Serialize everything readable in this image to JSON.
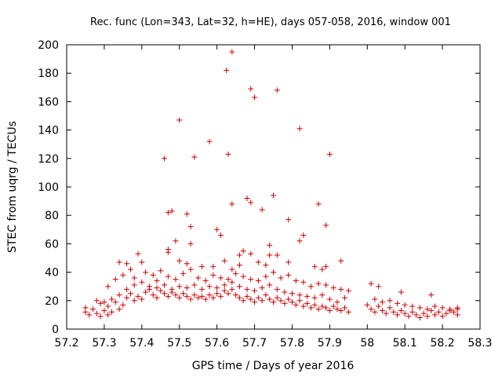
{
  "chart_data": {
    "type": "scatter",
    "title": "Rec. func (Lon=343, Lat=32, h=HE), days 057-058, 2016, window 001",
    "xlabel": "GPS time / Days of year 2016",
    "ylabel": "STEC from uqrg / TECUs",
    "xlim": [
      57.2,
      58.3
    ],
    "ylim": [
      0,
      200
    ],
    "xticks": [
      "57.2",
      "57.3",
      "57.4",
      "57.5",
      "57.6",
      "57.7",
      "57.8",
      "57.9",
      "58",
      "58.1",
      "58.2",
      "58.3"
    ],
    "yticks": [
      "0",
      "20",
      "40",
      "60",
      "80",
      "100",
      "120",
      "140",
      "160",
      "180",
      "200"
    ],
    "grid": false,
    "legend": "none",
    "marker": "plus",
    "color": "#cc0000",
    "series": [
      {
        "values": [
          [
            57.46,
            120
          ],
          [
            57.5,
            147
          ],
          [
            57.54,
            121
          ],
          [
            57.58,
            132
          ],
          [
            57.625,
            182
          ],
          [
            57.64,
            195
          ],
          [
            57.63,
            123
          ],
          [
            57.69,
            169
          ],
          [
            57.7,
            163
          ],
          [
            57.76,
            168
          ],
          [
            57.82,
            141
          ],
          [
            57.9,
            123
          ],
          [
            57.75,
            94
          ],
          [
            57.68,
            92
          ],
          [
            57.69,
            89
          ],
          [
            57.64,
            88
          ],
          [
            57.87,
            88
          ],
          [
            57.48,
            83
          ],
          [
            57.47,
            82
          ],
          [
            57.52,
            81
          ],
          [
            57.72,
            84
          ],
          [
            57.79,
            77
          ],
          [
            57.53,
            72
          ],
          [
            57.6,
            70
          ],
          [
            57.61,
            66
          ],
          [
            57.83,
            66
          ],
          [
            57.82,
            62
          ],
          [
            57.89,
            73
          ],
          [
            57.49,
            62
          ],
          [
            57.53,
            60
          ],
          [
            57.74,
            59
          ],
          [
            57.47,
            56
          ],
          [
            57.47,
            54
          ],
          [
            57.67,
            55
          ],
          [
            57.66,
            52
          ],
          [
            57.69,
            53
          ],
          [
            57.74,
            52
          ],
          [
            57.76,
            52
          ],
          [
            57.93,
            48
          ],
          [
            57.39,
            53
          ],
          [
            57.4,
            47
          ],
          [
            57.5,
            48
          ],
          [
            57.52,
            46
          ],
          [
            57.56,
            44
          ],
          [
            57.59,
            44
          ],
          [
            57.62,
            48
          ],
          [
            57.64,
            42
          ],
          [
            57.66,
            45
          ],
          [
            57.71,
            47
          ],
          [
            57.73,
            45
          ],
          [
            57.79,
            47
          ],
          [
            57.86,
            44
          ],
          [
            57.88,
            42
          ],
          [
            57.89,
            44
          ],
          [
            57.34,
            47
          ],
          [
            57.36,
            46
          ],
          [
            57.31,
            30
          ],
          [
            57.33,
            35
          ],
          [
            57.35,
            38
          ],
          [
            57.37,
            42
          ],
          [
            57.38,
            36
          ],
          [
            57.41,
            40
          ],
          [
            57.43,
            38
          ],
          [
            57.45,
            41
          ],
          [
            57.44,
            34
          ],
          [
            57.47,
            37
          ],
          [
            57.49,
            35
          ],
          [
            57.51,
            39
          ],
          [
            57.53,
            42
          ],
          [
            57.55,
            36
          ],
          [
            57.57,
            34
          ],
          [
            57.59,
            38
          ],
          [
            57.61,
            36
          ],
          [
            57.63,
            35
          ],
          [
            57.65,
            39
          ],
          [
            57.67,
            37
          ],
          [
            57.69,
            35
          ],
          [
            57.71,
            34
          ],
          [
            57.73,
            37
          ],
          [
            57.75,
            40
          ],
          [
            57.77,
            36
          ],
          [
            57.79,
            38
          ],
          [
            57.81,
            34
          ],
          [
            57.83,
            33
          ],
          [
            57.85,
            30
          ],
          [
            57.87,
            32
          ],
          [
            57.89,
            31
          ],
          [
            57.91,
            29
          ],
          [
            57.93,
            28
          ],
          [
            57.95,
            27
          ],
          [
            58.01,
            32
          ],
          [
            58.03,
            30
          ],
          [
            58.09,
            26
          ],
          [
            58.17,
            24
          ],
          [
            57.25,
            15
          ],
          [
            57.25,
            12
          ],
          [
            57.26,
            10
          ],
          [
            57.27,
            14
          ],
          [
            57.28,
            11
          ],
          [
            57.29,
            18
          ],
          [
            57.29,
            9
          ],
          [
            57.3,
            13
          ],
          [
            57.31,
            16
          ],
          [
            57.31,
            10
          ],
          [
            57.32,
            12
          ],
          [
            57.33,
            19
          ],
          [
            57.34,
            14
          ],
          [
            57.35,
            17
          ],
          [
            57.36,
            22
          ],
          [
            57.37,
            25
          ],
          [
            57.38,
            20
          ],
          [
            57.39,
            23
          ],
          [
            57.4,
            21
          ],
          [
            57.41,
            26
          ],
          [
            57.42,
            28
          ],
          [
            57.43,
            24
          ],
          [
            57.44,
            22
          ],
          [
            57.45,
            27
          ],
          [
            57.46,
            25
          ],
          [
            57.47,
            23
          ],
          [
            57.48,
            26
          ],
          [
            57.49,
            24
          ],
          [
            57.5,
            22
          ],
          [
            57.51,
            25
          ],
          [
            57.52,
            23
          ],
          [
            57.53,
            21
          ],
          [
            57.54,
            24
          ],
          [
            57.55,
            22
          ],
          [
            57.56,
            23
          ],
          [
            57.57,
            21
          ],
          [
            57.58,
            24
          ],
          [
            57.59,
            22
          ],
          [
            57.6,
            25
          ],
          [
            57.61,
            23
          ],
          [
            57.62,
            27
          ],
          [
            57.63,
            25
          ],
          [
            57.64,
            28
          ],
          [
            57.65,
            24
          ],
          [
            57.66,
            22
          ],
          [
            57.67,
            20
          ],
          [
            57.68,
            23
          ],
          [
            57.69,
            21
          ],
          [
            57.7,
            19
          ],
          [
            57.71,
            22
          ],
          [
            57.72,
            20
          ],
          [
            57.73,
            24
          ],
          [
            57.74,
            21
          ],
          [
            57.75,
            19
          ],
          [
            57.76,
            22
          ],
          [
            57.77,
            20
          ],
          [
            57.78,
            18
          ],
          [
            57.79,
            21
          ],
          [
            57.8,
            19
          ],
          [
            57.81,
            17
          ],
          [
            57.82,
            20
          ],
          [
            57.83,
            16
          ],
          [
            57.84,
            18
          ],
          [
            57.85,
            15
          ],
          [
            57.86,
            17
          ],
          [
            57.87,
            14
          ],
          [
            57.88,
            16
          ],
          [
            57.89,
            15
          ],
          [
            57.9,
            13
          ],
          [
            57.91,
            16
          ],
          [
            57.92,
            14
          ],
          [
            57.93,
            13
          ],
          [
            57.94,
            15
          ],
          [
            57.95,
            12
          ],
          [
            58.0,
            17
          ],
          [
            58.01,
            14
          ],
          [
            58.02,
            12
          ],
          [
            58.03,
            16
          ],
          [
            58.04,
            13
          ],
          [
            58.05,
            11
          ],
          [
            58.06,
            15
          ],
          [
            58.07,
            12
          ],
          [
            58.08,
            10
          ],
          [
            58.09,
            13
          ],
          [
            58.1,
            11
          ],
          [
            58.11,
            9
          ],
          [
            58.12,
            12
          ],
          [
            58.13,
            10
          ],
          [
            58.14,
            8
          ],
          [
            58.15,
            11
          ],
          [
            58.16,
            9
          ],
          [
            58.17,
            13
          ],
          [
            58.18,
            10
          ],
          [
            58.19,
            12
          ],
          [
            58.2,
            9
          ],
          [
            58.21,
            11
          ],
          [
            58.22,
            14
          ],
          [
            58.23,
            12
          ],
          [
            58.24,
            15
          ],
          [
            58.24,
            10
          ],
          [
            57.28,
            20
          ],
          [
            57.3,
            19
          ],
          [
            57.32,
            21
          ],
          [
            57.34,
            24
          ],
          [
            57.36,
            28
          ],
          [
            57.38,
            31
          ],
          [
            57.4,
            33
          ],
          [
            57.42,
            30
          ],
          [
            57.44,
            29
          ],
          [
            57.46,
            31
          ],
          [
            57.48,
            28
          ],
          [
            57.5,
            30
          ],
          [
            57.52,
            29
          ],
          [
            57.54,
            31
          ],
          [
            57.56,
            28
          ],
          [
            57.58,
            30
          ],
          [
            57.6,
            29
          ],
          [
            57.62,
            31
          ],
          [
            57.64,
            33
          ],
          [
            57.66,
            30
          ],
          [
            57.68,
            28
          ],
          [
            57.7,
            27
          ],
          [
            57.72,
            29
          ],
          [
            57.74,
            31
          ],
          [
            57.76,
            28
          ],
          [
            57.78,
            26
          ],
          [
            57.8,
            25
          ],
          [
            57.82,
            24
          ],
          [
            57.84,
            23
          ],
          [
            57.86,
            22
          ],
          [
            57.88,
            24
          ],
          [
            57.9,
            21
          ],
          [
            57.92,
            19
          ],
          [
            57.94,
            22
          ],
          [
            58.02,
            21
          ],
          [
            58.04,
            19
          ],
          [
            58.06,
            20
          ],
          [
            58.08,
            18
          ],
          [
            58.1,
            17
          ],
          [
            58.12,
            16
          ],
          [
            58.14,
            15
          ],
          [
            58.16,
            14
          ],
          [
            58.18,
            16
          ],
          [
            58.2,
            15
          ],
          [
            58.22,
            13
          ],
          [
            58.24,
            14
          ]
        ]
      }
    ]
  }
}
